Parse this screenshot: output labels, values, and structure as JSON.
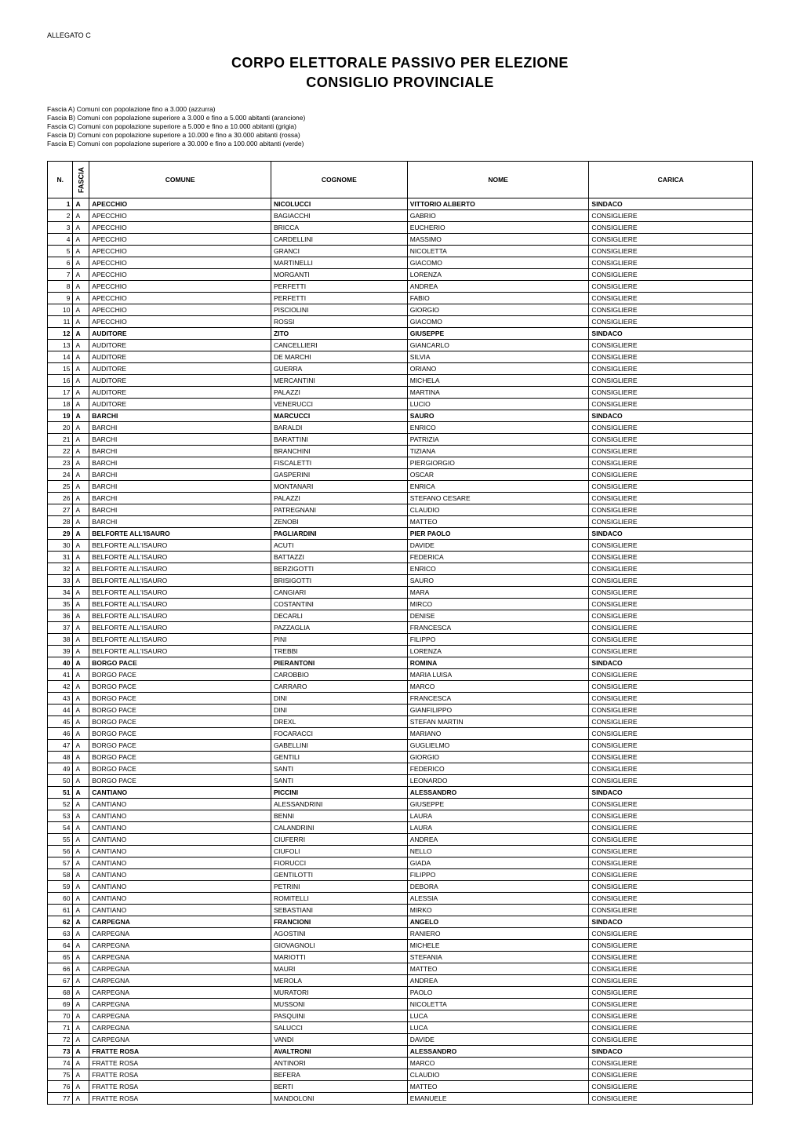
{
  "allegato": "ALLEGATO C",
  "title1": "CORPO ELETTORALE PASSIVO PER ELEZIONE",
  "title2": "CONSIGLIO PROVINCIALE",
  "fasce": [
    "Fascia A) Comuni con popolazione fino a 3.000 (azzurra)",
    "Fascia B) Comuni con popolazione superiore a 3.000 e fino a 5.000 abitanti (arancione)",
    "Fascia C) Comuni con popolazione superiore a 5.000 e fino a 10.000 abitanti (grigia)",
    "Fascia D) Comuni con popolazione superiore a 10.000 e fino a 30.000 abitanti (rossa)",
    "Fascia E) Comuni con popolazione superiore a 30.000 e fino a 100.000 abitanti (verde)"
  ],
  "headers": {
    "n": "N.",
    "fascia": "FASCIA",
    "comune": "COMUNE",
    "cognome": "COGNOME",
    "nome": "NOME",
    "carica": "CARICA"
  },
  "rows": [
    {
      "n": "1",
      "f": "A",
      "comune": "APECCHIO",
      "cognome": "NICOLUCCI",
      "nome": "VITTORIO ALBERTO",
      "carica": "SINDACO",
      "bold": true
    },
    {
      "n": "2",
      "f": "A",
      "comune": "APECCHIO",
      "cognome": "BAGIACCHI",
      "nome": "GABRIO",
      "carica": "CONSIGLIERE"
    },
    {
      "n": "3",
      "f": "A",
      "comune": "APECCHIO",
      "cognome": "BRICCA",
      "nome": "EUCHERIO",
      "carica": "CONSIGLIERE"
    },
    {
      "n": "4",
      "f": "A",
      "comune": "APECCHIO",
      "cognome": "CARDELLINI",
      "nome": "MASSIMO",
      "carica": "CONSIGLIERE"
    },
    {
      "n": "5",
      "f": "A",
      "comune": "APECCHIO",
      "cognome": "GRANCI",
      "nome": "NICOLETTA",
      "carica": "CONSIGLIERE"
    },
    {
      "n": "6",
      "f": "A",
      "comune": "APECCHIO",
      "cognome": "MARTINELLI",
      "nome": "GIACOMO",
      "carica": "CONSIGLIERE"
    },
    {
      "n": "7",
      "f": "A",
      "comune": "APECCHIO",
      "cognome": "MORGANTI",
      "nome": "LORENZA",
      "carica": "CONSIGLIERE"
    },
    {
      "n": "8",
      "f": "A",
      "comune": "APECCHIO",
      "cognome": "PERFETTI",
      "nome": "ANDREA",
      "carica": "CONSIGLIERE"
    },
    {
      "n": "9",
      "f": "A",
      "comune": "APECCHIO",
      "cognome": "PERFETTI",
      "nome": "FABIO",
      "carica": "CONSIGLIERE"
    },
    {
      "n": "10",
      "f": "A",
      "comune": "APECCHIO",
      "cognome": "PISCIOLINI",
      "nome": "GIORGIO",
      "carica": "CONSIGLIERE"
    },
    {
      "n": "11",
      "f": "A",
      "comune": "APECCHIO",
      "cognome": "ROSSI",
      "nome": "GIACOMO",
      "carica": "CONSIGLIERE"
    },
    {
      "n": "12",
      "f": "A",
      "comune": "AUDITORE",
      "cognome": "ZITO",
      "nome": "GIUSEPPE",
      "carica": "SINDACO",
      "bold": true
    },
    {
      "n": "13",
      "f": "A",
      "comune": "AUDITORE",
      "cognome": "CANCELLIERI",
      "nome": "GIANCARLO",
      "carica": "CONSIGLIERE"
    },
    {
      "n": "14",
      "f": "A",
      "comune": "AUDITORE",
      "cognome": "DE MARCHI",
      "nome": "SILVIA",
      "carica": "CONSIGLIERE"
    },
    {
      "n": "15",
      "f": "A",
      "comune": "AUDITORE",
      "cognome": "GUERRA",
      "nome": "ORIANO",
      "carica": "CONSIGLIERE"
    },
    {
      "n": "16",
      "f": "A",
      "comune": "AUDITORE",
      "cognome": "MERCANTINI",
      "nome": "MICHELA",
      "carica": "CONSIGLIERE"
    },
    {
      "n": "17",
      "f": "A",
      "comune": "AUDITORE",
      "cognome": "PALAZZI",
      "nome": "MARTINA",
      "carica": "CONSIGLIERE"
    },
    {
      "n": "18",
      "f": "A",
      "comune": "AUDITORE",
      "cognome": "VENERUCCI",
      "nome": "LUCIO",
      "carica": "CONSIGLIERE"
    },
    {
      "n": "19",
      "f": "A",
      "comune": "BARCHI",
      "cognome": "MARCUCCI",
      "nome": "SAURO",
      "carica": "SINDACO",
      "bold": true
    },
    {
      "n": "20",
      "f": "A",
      "comune": "BARCHI",
      "cognome": "BARALDI",
      "nome": "ENRICO",
      "carica": "CONSIGLIERE"
    },
    {
      "n": "21",
      "f": "A",
      "comune": "BARCHI",
      "cognome": "BARATTINI",
      "nome": "PATRIZIA",
      "carica": "CONSIGLIERE"
    },
    {
      "n": "22",
      "f": "A",
      "comune": "BARCHI",
      "cognome": "BRANCHINI",
      "nome": "TIZIANA",
      "carica": "CONSIGLIERE"
    },
    {
      "n": "23",
      "f": "A",
      "comune": "BARCHI",
      "cognome": "FISCALETTI",
      "nome": "PIERGIORGIO",
      "carica": "CONSIGLIERE"
    },
    {
      "n": "24",
      "f": "A",
      "comune": "BARCHI",
      "cognome": "GASPERINI",
      "nome": "OSCAR",
      "carica": "CONSIGLIERE"
    },
    {
      "n": "25",
      "f": "A",
      "comune": "BARCHI",
      "cognome": "MONTANARI",
      "nome": "ENRICA",
      "carica": "CONSIGLIERE"
    },
    {
      "n": "26",
      "f": "A",
      "comune": "BARCHI",
      "cognome": "PALAZZI",
      "nome": "STEFANO CESARE",
      "carica": "CONSIGLIERE"
    },
    {
      "n": "27",
      "f": "A",
      "comune": "BARCHI",
      "cognome": "PATREGNANI",
      "nome": "CLAUDIO",
      "carica": "CONSIGLIERE"
    },
    {
      "n": "28",
      "f": "A",
      "comune": "BARCHI",
      "cognome": "ZENOBI",
      "nome": "MATTEO",
      "carica": "CONSIGLIERE"
    },
    {
      "n": "29",
      "f": "A",
      "comune": "BELFORTE ALL'ISAURO",
      "cognome": "PAGLIARDINI",
      "nome": "PIER PAOLO",
      "carica": "SINDACO",
      "bold": true
    },
    {
      "n": "30",
      "f": "A",
      "comune": "BELFORTE ALL'ISAURO",
      "cognome": "ACUTI",
      "nome": "DAVIDE",
      "carica": "CONSIGLIERE"
    },
    {
      "n": "31",
      "f": "A",
      "comune": "BELFORTE ALL'ISAURO",
      "cognome": "BATTAZZI",
      "nome": "FEDERICA",
      "carica": "CONSIGLIERE"
    },
    {
      "n": "32",
      "f": "A",
      "comune": "BELFORTE ALL'ISAURO",
      "cognome": "BERZIGOTTI",
      "nome": "ENRICO",
      "carica": "CONSIGLIERE"
    },
    {
      "n": "33",
      "f": "A",
      "comune": "BELFORTE ALL'ISAURO",
      "cognome": "BRISIGOTTI",
      "nome": "SAURO",
      "carica": "CONSIGLIERE"
    },
    {
      "n": "34",
      "f": "A",
      "comune": "BELFORTE ALL'ISAURO",
      "cognome": "CANGIARI",
      "nome": "MARA",
      "carica": "CONSIGLIERE"
    },
    {
      "n": "35",
      "f": "A",
      "comune": "BELFORTE ALL'ISAURO",
      "cognome": "COSTANTINI",
      "nome": "MIRCO",
      "carica": "CONSIGLIERE"
    },
    {
      "n": "36",
      "f": "A",
      "comune": "BELFORTE ALL'ISAURO",
      "cognome": "DECARLI",
      "nome": "DENISE",
      "carica": "CONSIGLIERE"
    },
    {
      "n": "37",
      "f": "A",
      "comune": "BELFORTE ALL'ISAURO",
      "cognome": "PAZZAGLIA",
      "nome": "FRANCESCA",
      "carica": "CONSIGLIERE"
    },
    {
      "n": "38",
      "f": "A",
      "comune": "BELFORTE ALL'ISAURO",
      "cognome": "PINI",
      "nome": "FILIPPO",
      "carica": "CONSIGLIERE"
    },
    {
      "n": "39",
      "f": "A",
      "comune": "BELFORTE ALL'ISAURO",
      "cognome": "TREBBI",
      "nome": "LORENZA",
      "carica": "CONSIGLIERE"
    },
    {
      "n": "40",
      "f": "A",
      "comune": "BORGO PACE",
      "cognome": "PIERANTONI",
      "nome": "ROMINA",
      "carica": "SINDACO",
      "bold": true
    },
    {
      "n": "41",
      "f": "A",
      "comune": "BORGO PACE",
      "cognome": "CAROBBIO",
      "nome": "MARIA LUISA",
      "carica": "CONSIGLIERE"
    },
    {
      "n": "42",
      "f": "A",
      "comune": "BORGO PACE",
      "cognome": "CARRARO",
      "nome": "MARCO",
      "carica": "CONSIGLIERE"
    },
    {
      "n": "43",
      "f": "A",
      "comune": "BORGO PACE",
      "cognome": "DINI",
      "nome": "FRANCESCA",
      "carica": "CONSIGLIERE"
    },
    {
      "n": "44",
      "f": "A",
      "comune": "BORGO PACE",
      "cognome": "DINI",
      "nome": "GIANFILIPPO",
      "carica": "CONSIGLIERE"
    },
    {
      "n": "45",
      "f": "A",
      "comune": "BORGO PACE",
      "cognome": "DREXL",
      "nome": "STEFAN MARTIN",
      "carica": "CONSIGLIERE"
    },
    {
      "n": "46",
      "f": "A",
      "comune": "BORGO PACE",
      "cognome": "FOCARACCI",
      "nome": "MARIANO",
      "carica": "CONSIGLIERE"
    },
    {
      "n": "47",
      "f": "A",
      "comune": "BORGO PACE",
      "cognome": "GABELLINI",
      "nome": "GUGLIELMO",
      "carica": "CONSIGLIERE"
    },
    {
      "n": "48",
      "f": "A",
      "comune": "BORGO PACE",
      "cognome": "GENTILI",
      "nome": "GIORGIO",
      "carica": "CONSIGLIERE"
    },
    {
      "n": "49",
      "f": "A",
      "comune": "BORGO PACE",
      "cognome": "SANTI",
      "nome": "FEDERICO",
      "carica": "CONSIGLIERE"
    },
    {
      "n": "50",
      "f": "A",
      "comune": "BORGO PACE",
      "cognome": "SANTI",
      "nome": "LEONARDO",
      "carica": "CONSIGLIERE"
    },
    {
      "n": "51",
      "f": "A",
      "comune": "CANTIANO",
      "cognome": "PICCINI",
      "nome": "ALESSANDRO",
      "carica": "SINDACO",
      "bold": true
    },
    {
      "n": "52",
      "f": "A",
      "comune": "CANTIANO",
      "cognome": "ALESSANDRINI",
      "nome": "GIUSEPPE",
      "carica": "CONSIGLIERE"
    },
    {
      "n": "53",
      "f": "A",
      "comune": "CANTIANO",
      "cognome": "BENNI",
      "nome": "LAURA",
      "carica": "CONSIGLIERE"
    },
    {
      "n": "54",
      "f": "A",
      "comune": "CANTIANO",
      "cognome": "CALANDRINI",
      "nome": "LAURA",
      "carica": "CONSIGLIERE"
    },
    {
      "n": "55",
      "f": "A",
      "comune": "CANTIANO",
      "cognome": "CIUFERRI",
      "nome": "ANDREA",
      "carica": "CONSIGLIERE"
    },
    {
      "n": "56",
      "f": "A",
      "comune": "CANTIANO",
      "cognome": "CIUFOLI",
      "nome": "NELLO",
      "carica": "CONSIGLIERE"
    },
    {
      "n": "57",
      "f": "A",
      "comune": "CANTIANO",
      "cognome": "FIORUCCI",
      "nome": "GIADA",
      "carica": "CONSIGLIERE"
    },
    {
      "n": "58",
      "f": "A",
      "comune": "CANTIANO",
      "cognome": "GENTILOTTI",
      "nome": "FILIPPO",
      "carica": "CONSIGLIERE"
    },
    {
      "n": "59",
      "f": "A",
      "comune": "CANTIANO",
      "cognome": "PETRINI",
      "nome": "DEBORA",
      "carica": "CONSIGLIERE"
    },
    {
      "n": "60",
      "f": "A",
      "comune": "CANTIANO",
      "cognome": "ROMITELLI",
      "nome": "ALESSIA",
      "carica": "CONSIGLIERE"
    },
    {
      "n": "61",
      "f": "A",
      "comune": "CANTIANO",
      "cognome": "SEBASTIANI",
      "nome": "MIRKO",
      "carica": "CONSIGLIERE"
    },
    {
      "n": "62",
      "f": "A",
      "comune": "CARPEGNA",
      "cognome": "FRANCIONI",
      "nome": "ANGELO",
      "carica": "SINDACO",
      "bold": true
    },
    {
      "n": "63",
      "f": "A",
      "comune": "CARPEGNA",
      "cognome": "AGOSTINI",
      "nome": "RANIERO",
      "carica": "CONSIGLIERE"
    },
    {
      "n": "64",
      "f": "A",
      "comune": "CARPEGNA",
      "cognome": "GIOVAGNOLI",
      "nome": "MICHELE",
      "carica": "CONSIGLIERE"
    },
    {
      "n": "65",
      "f": "A",
      "comune": "CARPEGNA",
      "cognome": "MARIOTTI",
      "nome": "STEFANIA",
      "carica": "CONSIGLIERE"
    },
    {
      "n": "66",
      "f": "A",
      "comune": "CARPEGNA",
      "cognome": "MAURI",
      "nome": "MATTEO",
      "carica": "CONSIGLIERE"
    },
    {
      "n": "67",
      "f": "A",
      "comune": "CARPEGNA",
      "cognome": "MEROLA",
      "nome": "ANDREA",
      "carica": "CONSIGLIERE"
    },
    {
      "n": "68",
      "f": "A",
      "comune": "CARPEGNA",
      "cognome": "MURATORI",
      "nome": "PAOLO",
      "carica": "CONSIGLIERE"
    },
    {
      "n": "69",
      "f": "A",
      "comune": "CARPEGNA",
      "cognome": "MUSSONI",
      "nome": "NICOLETTA",
      "carica": "CONSIGLIERE"
    },
    {
      "n": "70",
      "f": "A",
      "comune": "CARPEGNA",
      "cognome": "PASQUINI",
      "nome": "LUCA",
      "carica": "CONSIGLIERE"
    },
    {
      "n": "71",
      "f": "A",
      "comune": "CARPEGNA",
      "cognome": "SALUCCI",
      "nome": "LUCA",
      "carica": "CONSIGLIERE"
    },
    {
      "n": "72",
      "f": "A",
      "comune": "CARPEGNA",
      "cognome": "VANDI",
      "nome": "DAVIDE",
      "carica": "CONSIGLIERE"
    },
    {
      "n": "73",
      "f": "A",
      "comune": "FRATTE ROSA",
      "cognome": "AVALTRONI",
      "nome": "ALESSANDRO",
      "carica": "SINDACO",
      "bold": true
    },
    {
      "n": "74",
      "f": "A",
      "comune": "FRATTE ROSA",
      "cognome": "ANTINORI",
      "nome": "MARCO",
      "carica": "CONSIGLIERE"
    },
    {
      "n": "75",
      "f": "A",
      "comune": "FRATTE ROSA",
      "cognome": "BEFERA",
      "nome": "CLAUDIO",
      "carica": "CONSIGLIERE"
    },
    {
      "n": "76",
      "f": "A",
      "comune": "FRATTE ROSA",
      "cognome": "BERTI",
      "nome": "MATTEO",
      "carica": "CONSIGLIERE"
    },
    {
      "n": "77",
      "f": "A",
      "comune": "FRATTE ROSA",
      "cognome": "MANDOLONI",
      "nome": "EMANUELE",
      "carica": "CONSIGLIERE"
    }
  ]
}
